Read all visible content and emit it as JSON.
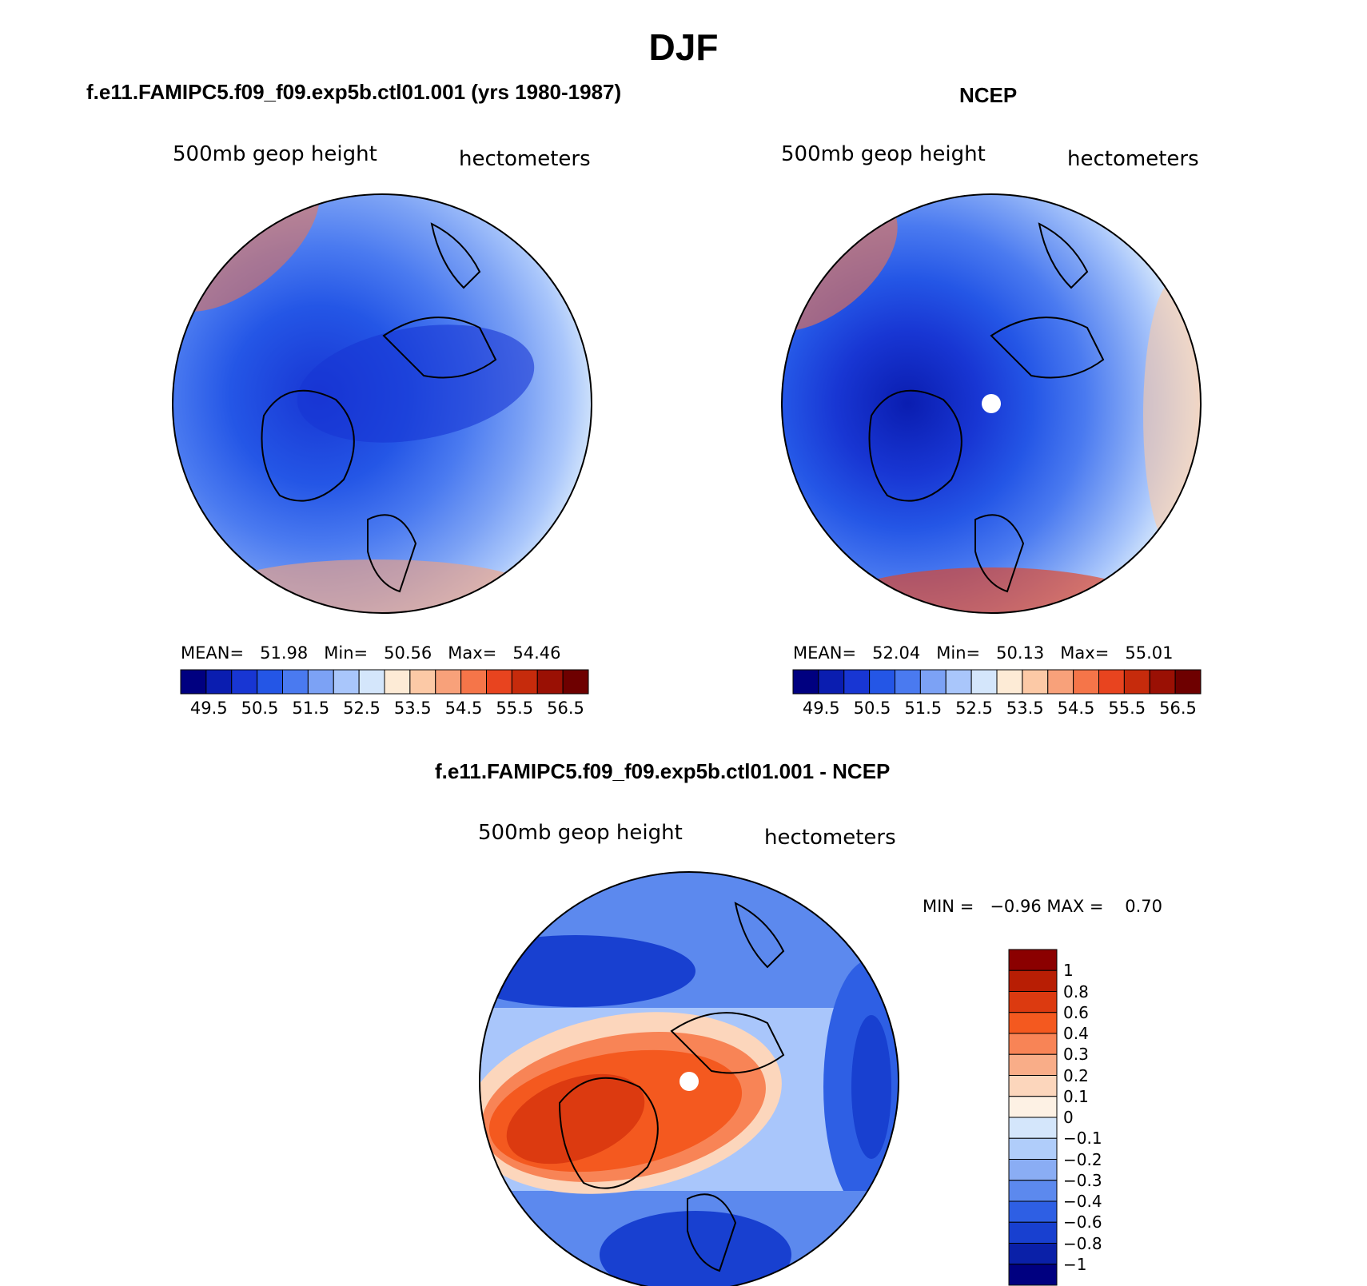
{
  "title": "DJF",
  "panels": [
    {
      "title": "f.e11.FAMIPC5.f09_f09.exp5b.ctl01.001 (yrs 1980-1987)",
      "variable": "500mb geop height",
      "units": "hectometers",
      "stats": {
        "mean_label": "MEAN=",
        "mean": "51.98",
        "min_label": "Min=",
        "min": "50.56",
        "max_label": "Max=",
        "max": "54.46"
      }
    },
    {
      "title": "NCEP",
      "variable": "500mb geop height",
      "units": "hectometers",
      "stats": {
        "mean_label": "MEAN=",
        "mean": "52.04",
        "min_label": "Min=",
        "min": "50.13",
        "max_label": "Max=",
        "max": "55.01"
      }
    },
    {
      "title": "f.e11.FAMIPC5.f09_f09.exp5b.ctl01.001 - NCEP",
      "variable": "500mb geop height",
      "units": "hectometers",
      "stats": {
        "min_label": "MIN =",
        "min": "−0.96",
        "max_label": "MAX =",
        "max": "0.70"
      }
    }
  ],
  "colorbar_main": {
    "colors": [
      "#000080",
      "#0a1db0",
      "#1836d3",
      "#2456e6",
      "#4a7af0",
      "#7ca2f5",
      "#a9c6fb",
      "#d4e6fb",
      "#fdebd6",
      "#fcc9a6",
      "#f8a17a",
      "#f57549",
      "#e8441f",
      "#c62b0c",
      "#9a1004",
      "#6e0000"
    ],
    "labels": [
      "49.5",
      "50.5",
      "51.5",
      "52.5",
      "53.5",
      "54.5",
      "55.5",
      "56.5"
    ]
  },
  "colorbar_diff": {
    "colors": [
      "#8b0000",
      "#b81e04",
      "#dc3a10",
      "#f4591f",
      "#f88456",
      "#f9ad88",
      "#fcd6bc",
      "#fdf1e4",
      "#d4e6fb",
      "#b0cdfa",
      "#8aadf4",
      "#5c89ee",
      "#2e5fe4",
      "#1840d0",
      "#0a20a8",
      "#000080"
    ],
    "labels": [
      "1",
      "0.8",
      "0.6",
      "0.4",
      "0.3",
      "0.2",
      "0.1",
      "0",
      "−0.1",
      "−0.2",
      "−0.3",
      "−0.4",
      "−0.6",
      "−0.8",
      "−1"
    ]
  }
}
